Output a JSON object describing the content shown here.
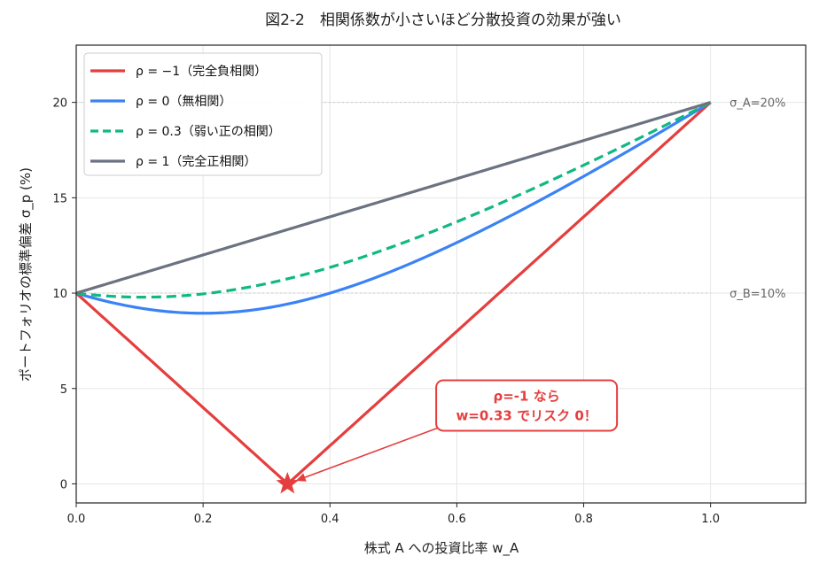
{
  "chart_data": {
    "type": "line",
    "title": "図2-2　相関係数が小さいほど分散投資の効果が強い",
    "xlabel": "株式 A への投資比率 w_A",
    "ylabel": "ポートフォリオの標準偏差 σ_p (%)",
    "xlim": [
      0,
      1.15
    ],
    "ylim": [
      -1,
      23
    ],
    "xticks": [
      "0.0",
      "0.2",
      "0.4",
      "0.6",
      "0.8",
      "1.0"
    ],
    "yticks": [
      "0",
      "5",
      "10",
      "15",
      "20"
    ],
    "grid": true,
    "legend_position": "top-left",
    "sigma_A": 20,
    "sigma_B": 10,
    "series": [
      {
        "name": "ρ = −1（完全負相関）",
        "rho": -1,
        "color": "#e53e3e",
        "dash": "solid"
      },
      {
        "name": "ρ = 0（無相関）",
        "rho": 0,
        "color": "#3b82f6",
        "dash": "solid"
      },
      {
        "name": "ρ = 0.3（弱い正の相関）",
        "rho": 0.3,
        "color": "#10b981",
        "dash": "dashed"
      },
      {
        "name": "ρ = 1（完全正相関）",
        "rho": 1,
        "color": "#6b7280",
        "dash": "solid"
      }
    ],
    "side_labels": [
      {
        "text": "σ_A=20%",
        "y": 20
      },
      {
        "text": "σ_B=10%",
        "y": 10
      }
    ],
    "min_risk_point": {
      "x": 0.333,
      "y": 0,
      "color": "#e53e3e"
    },
    "annotation": {
      "lines": [
        "ρ=-1 なら",
        "w=0.33 でリスク 0！"
      ],
      "anchor_x": 0.71,
      "anchor_y": 3.9,
      "color": "#e53e3e"
    }
  }
}
